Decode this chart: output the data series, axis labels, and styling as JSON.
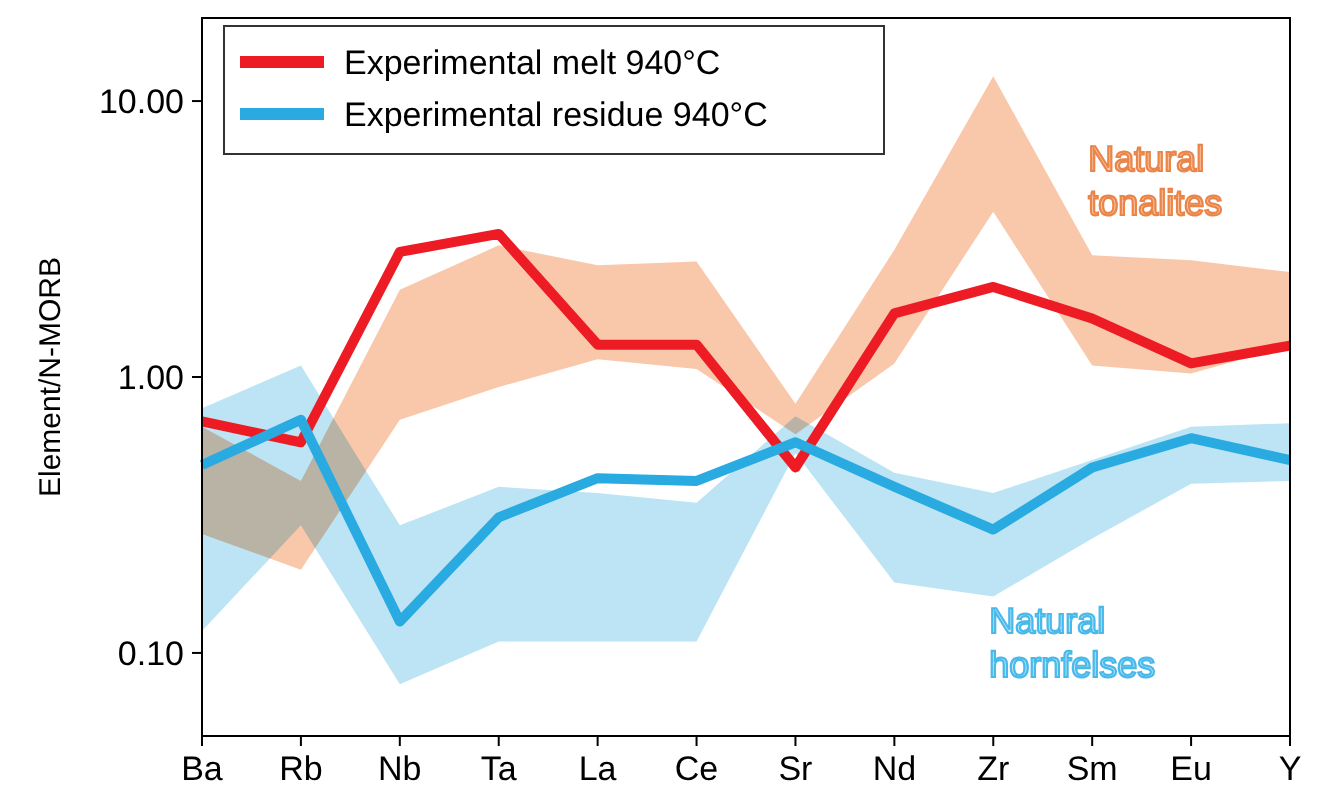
{
  "chart_data": {
    "type": "line",
    "ylabel": "Element/N-MORB",
    "categories": [
      "Ba",
      "Rb",
      "Nb",
      "Ta",
      "La",
      "Ce",
      "Sr",
      "Nd",
      "Zr",
      "Sm",
      "Eu",
      "Y"
    ],
    "log": true,
    "ylim": [
      0.05,
      20
    ],
    "yticks": [
      {
        "value": 0.1,
        "label": "0.10"
      },
      {
        "value": 1,
        "label": "1.00"
      },
      {
        "value": 10,
        "label": "10.00"
      }
    ],
    "legend": "top left",
    "grid": false,
    "marker": "none",
    "line_style": "solid",
    "series": [
      {
        "name": "Natural tonalites",
        "type": "area",
        "color": "#f9c8ab",
        "values": [
          null,
          null,
          null,
          null,
          null,
          null,
          null,
          null,
          null,
          null,
          null,
          null
        ],
        "lower": [
          0.27,
          0.2,
          0.7,
          0.92,
          1.16,
          1.07,
          0.62,
          1.12,
          3.97,
          1.1,
          1.03,
          1.3
        ],
        "upper": [
          0.66,
          0.42,
          2.07,
          3.0,
          2.54,
          2.62,
          0.8,
          2.89,
          12.3,
          2.76,
          2.65,
          2.4
        ]
      },
      {
        "name": "Natural hornfelses",
        "type": "area",
        "color": "#bde4f5",
        "values": [
          null,
          null,
          null,
          null,
          null,
          null,
          null,
          null,
          null,
          null,
          null,
          null
        ],
        "lower": [
          0.12,
          0.29,
          0.077,
          0.11,
          0.11,
          0.11,
          0.53,
          0.18,
          0.16,
          0.26,
          0.41,
          0.42
        ],
        "upper": [
          0.77,
          1.1,
          0.29,
          0.4,
          0.38,
          0.35,
          0.72,
          0.45,
          0.38,
          0.5,
          0.66,
          0.68
        ]
      },
      {
        "name": "Experimental melt 940°C",
        "color": "#ed1c24",
        "values": [
          0.69,
          0.58,
          2.84,
          3.3,
          1.31,
          1.31,
          0.47,
          1.7,
          2.12,
          1.63,
          1.12,
          1.3
        ]
      },
      {
        "name": "Experimental residue 940°C",
        "color": "#29abe2",
        "values": [
          0.48,
          0.7,
          0.13,
          0.31,
          0.43,
          0.42,
          0.58,
          0.4,
          0.28,
          0.47,
          0.6,
          0.5
        ]
      }
    ]
  }
}
